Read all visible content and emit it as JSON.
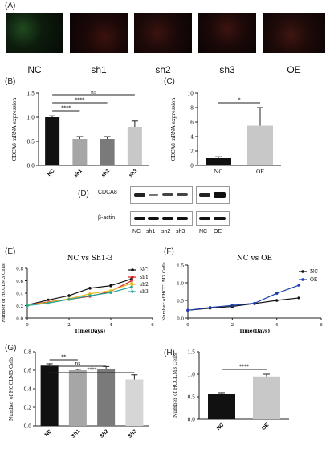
{
  "colors": {
    "black": "#111111",
    "red": "#d62020",
    "yellow": "#e8c020",
    "green": "#2aa59a",
    "blue": "#1f3fae",
    "grey1": "#7a7a7a",
    "grey2": "#a6a6a6",
    "grey3": "#c8c8c8",
    "grey4": "#d6d6d6"
  },
  "panel_letters": {
    "A": "(A)",
    "B": "(B)",
    "C": "(C)",
    "D": "(D)",
    "E": "(E)",
    "F": "(F)",
    "G": "(G)",
    "H": "(H)"
  },
  "fluorescence": {
    "labels": [
      "NC",
      "sh1",
      "sh2",
      "sh3",
      "OE"
    ],
    "tints": [
      "green",
      "red",
      "red",
      "red",
      "red"
    ]
  },
  "western": {
    "left_lanes": [
      "NC",
      "sh1",
      "sh2",
      "sh3"
    ],
    "right_lanes": [
      "NC",
      "OE"
    ],
    "rows": [
      "CDCA8",
      "β-actin"
    ]
  },
  "chart_data": [
    {
      "id": "B",
      "type": "bar",
      "ylabel": "CDCA8 mRNA expression",
      "categories": [
        "NC",
        "sh1",
        "sh2",
        "sh3"
      ],
      "values": [
        1.0,
        0.55,
        0.55,
        0.8
      ],
      "errors": [
        0.03,
        0.05,
        0.05,
        0.12
      ],
      "ylim": [
        0,
        1.5
      ],
      "yticks": [
        0.0,
        0.5,
        1.0,
        1.5
      ],
      "ytick_labels": [
        "0.0",
        "0.5",
        "1.0",
        "1.5"
      ],
      "significance": [
        {
          "from": 0,
          "to": 1,
          "label": "****"
        },
        {
          "from": 0,
          "to": 2,
          "label": "****"
        },
        {
          "from": 0,
          "to": 3,
          "label": "ns"
        }
      ]
    },
    {
      "id": "C",
      "type": "bar",
      "ylabel": "CDCA8 mRNA expression",
      "categories": [
        "NC",
        "OE"
      ],
      "values": [
        1.0,
        5.5
      ],
      "errors": [
        0.2,
        2.5
      ],
      "ylim": [
        0,
        10
      ],
      "yticks": [
        0,
        2,
        4,
        6,
        8,
        10
      ],
      "ytick_labels": [
        "0",
        "2",
        "4",
        "6",
        "8",
        "10"
      ],
      "significance": [
        {
          "from": 0,
          "to": 1,
          "label": "*"
        }
      ]
    },
    {
      "id": "E",
      "type": "line",
      "title": "NC vs Sh1-3",
      "xlabel": "Time(Days)",
      "ylabel": "Number of HCCLM3 Cells",
      "x": [
        0,
        1,
        2,
        3,
        4,
        5
      ],
      "xlim": [
        0,
        6
      ],
      "ylim": [
        0.0,
        0.8
      ],
      "xticks": [
        0,
        2,
        4,
        6
      ],
      "yticks": [
        0.0,
        0.2,
        0.4,
        0.6,
        0.8
      ],
      "ytick_labels": [
        "0.0",
        "0.2",
        "0.4",
        "0.6",
        "0.8"
      ],
      "series": [
        {
          "name": "NC",
          "values": [
            0.21,
            0.29,
            0.36,
            0.48,
            0.52,
            0.63
          ],
          "errors": [
            0.01,
            0.01,
            0.01,
            0.01,
            0.02,
            0.03
          ],
          "color": "black"
        },
        {
          "name": "sh1",
          "values": [
            0.21,
            0.26,
            0.3,
            0.35,
            0.43,
            0.6
          ],
          "errors": [
            0.01,
            0.01,
            0.01,
            0.02,
            0.02,
            0.04
          ],
          "color": "red"
        },
        {
          "name": "sh2",
          "values": [
            0.21,
            0.25,
            0.31,
            0.39,
            0.44,
            0.56
          ],
          "errors": [
            0.01,
            0.01,
            0.01,
            0.02,
            0.02,
            0.04
          ],
          "color": "yellow"
        },
        {
          "name": "sh3",
          "values": [
            0.2,
            0.24,
            0.3,
            0.36,
            0.41,
            0.5
          ],
          "errors": [
            0.01,
            0.01,
            0.01,
            0.02,
            0.02,
            0.05
          ],
          "color": "green"
        }
      ]
    },
    {
      "id": "F",
      "type": "line",
      "title": "NC vs OE",
      "xlabel": "Time(Days)",
      "ylabel": "Number of HCCLM3 Cells",
      "x": [
        0,
        1,
        2,
        3,
        4,
        5
      ],
      "xlim": [
        0,
        6
      ],
      "ylim": [
        0.0,
        1.5
      ],
      "xticks": [
        0,
        2,
        4,
        6
      ],
      "yticks": [
        0.0,
        0.5,
        1.0,
        1.5
      ],
      "ytick_labels": [
        "0.0",
        "0.5",
        "1.0",
        "1.5"
      ],
      "series": [
        {
          "name": "NC",
          "values": [
            0.22,
            0.28,
            0.33,
            0.41,
            0.5,
            0.57
          ],
          "errors": [
            0.01,
            0.01,
            0.01,
            0.01,
            0.02,
            0.02
          ],
          "color": "black"
        },
        {
          "name": "OE",
          "values": [
            0.22,
            0.3,
            0.36,
            0.42,
            0.7,
            0.93
          ],
          "errors": [
            0.01,
            0.01,
            0.01,
            0.02,
            0.03,
            0.05
          ],
          "color": "blue"
        }
      ]
    },
    {
      "id": "G",
      "type": "bar",
      "ylabel": "Number of HCCLM3 Cells",
      "categories": [
        "NC",
        "Sh1",
        "Sh2",
        "Sh3"
      ],
      "values": [
        0.65,
        0.6,
        0.61,
        0.5
      ],
      "errors": [
        0.02,
        0.01,
        0.03,
        0.05
      ],
      "ylim": [
        0.0,
        0.8
      ],
      "yticks": [
        0.0,
        0.2,
        0.4,
        0.6,
        0.8
      ],
      "ytick_labels": [
        "0.0",
        "0.2",
        "0.4",
        "0.6",
        "0.8"
      ],
      "significance": [
        {
          "from": 0,
          "to": 1,
          "label": "**"
        },
        {
          "from": 0,
          "to": 2,
          "label": "ns"
        },
        {
          "from": 0,
          "to": 3,
          "label": "****"
        }
      ]
    },
    {
      "id": "H",
      "type": "bar",
      "ylabel": "Number of HCCLM3 Cells",
      "categories": [
        "NC",
        "OE"
      ],
      "values": [
        0.57,
        0.95
      ],
      "errors": [
        0.02,
        0.05
      ],
      "ylim": [
        0.0,
        1.5
      ],
      "yticks": [
        0.0,
        0.5,
        1.0,
        1.5
      ],
      "ytick_labels": [
        "0.0",
        "0.5",
        "1.0",
        "1.5"
      ],
      "significance": [
        {
          "from": 0,
          "to": 1,
          "label": "****"
        }
      ]
    }
  ]
}
